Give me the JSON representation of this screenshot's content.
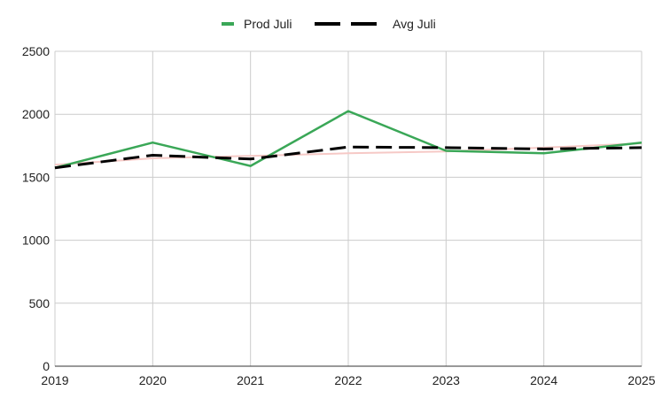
{
  "chart_data": {
    "type": "line",
    "title": "",
    "xlabel": "",
    "ylabel": "",
    "x": [
      2019,
      2020,
      2021,
      2022,
      2023,
      2024,
      2025
    ],
    "x_tick_labels": [
      "2019",
      "2020",
      "2021",
      "2022",
      "2023",
      "2024",
      "2025"
    ],
    "ylim": [
      0,
      2500
    ],
    "y_tick_labels": [
      "0",
      "500",
      "1000",
      "1500",
      "2000",
      "2500"
    ],
    "y_ticks": [
      0,
      500,
      1000,
      1500,
      2000,
      2500
    ],
    "grid": true,
    "legend_position": "top-center",
    "series": [
      {
        "name": "Prod Juli",
        "style": "solid",
        "color": "#3aa757",
        "values": [
          1575,
          1775,
          1590,
          2025,
          1710,
          1690,
          1775
        ]
      },
      {
        "name": "Avg Juli",
        "style": "dashed",
        "color": "#000000",
        "values": [
          1575,
          1675,
          1645,
          1740,
          1735,
          1725,
          1735
        ]
      },
      {
        "name": "",
        "style": "trend",
        "color": "#f6c9c6",
        "values": [
          1600,
          1650,
          1670,
          1690,
          1705,
          1735,
          1770
        ]
      }
    ]
  }
}
